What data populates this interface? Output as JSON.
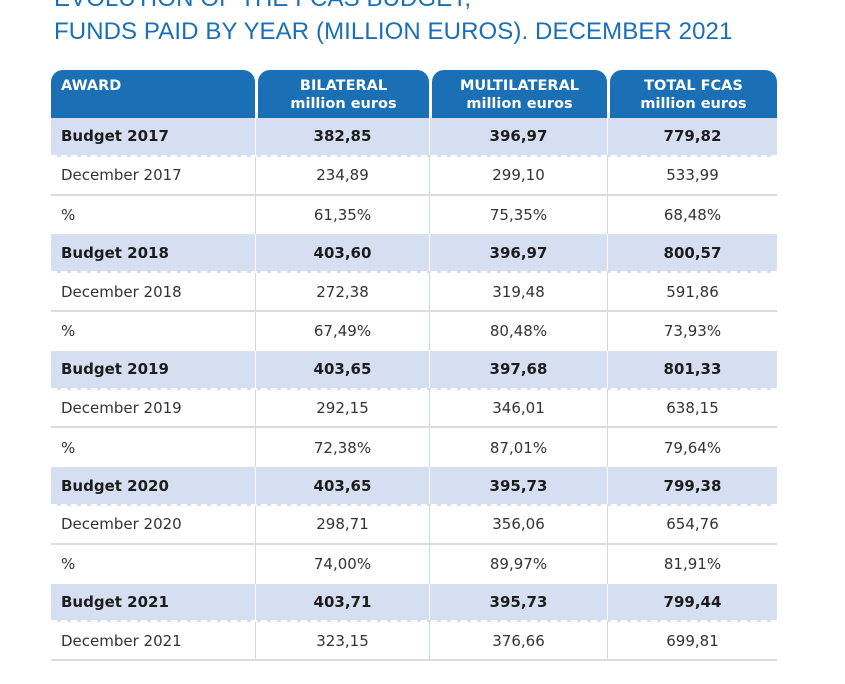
{
  "title": {
    "line1": "EVOLUTION OF THE FCAS BUDGET,",
    "line2": "FUNDS PAID BY YEAR (MILLION EUROS). DECEMBER 2021"
  },
  "header": {
    "award": "AWARD",
    "bilateral": [
      "BILATERAL",
      "million euros"
    ],
    "multilateral": [
      "MULTILATERAL",
      "million euros"
    ],
    "total": [
      "TOTAL FCAS",
      "million euros"
    ]
  },
  "rows": [
    {
      "type": "budget",
      "label": "Budget 2017",
      "bilateral": "382,85",
      "multilateral": "396,97",
      "total": "779,82"
    },
    {
      "type": "dec",
      "label": "December 2017",
      "bilateral": "234,89",
      "multilateral": "299,10",
      "total": "533,99"
    },
    {
      "type": "pct",
      "label": "%",
      "bilateral": "61,35%",
      "multilateral": "75,35%",
      "total": "68,48%"
    },
    {
      "type": "budget",
      "label": "Budget 2018",
      "bilateral": "403,60",
      "multilateral": "396,97",
      "total": "800,57"
    },
    {
      "type": "dec",
      "label": "December 2018",
      "bilateral": "272,38",
      "multilateral": "319,48",
      "total": "591,86"
    },
    {
      "type": "pct",
      "label": "%",
      "bilateral": "67,49%",
      "multilateral": "80,48%",
      "total": "73,93%"
    },
    {
      "type": "budget",
      "label": "Budget 2019",
      "bilateral": "403,65",
      "multilateral": "397,68",
      "total": "801,33"
    },
    {
      "type": "dec",
      "label": "December 2019",
      "bilateral": "292,15",
      "multilateral": "346,01",
      "total": "638,15"
    },
    {
      "type": "pct",
      "label": "%",
      "bilateral": "72,38%",
      "multilateral": "87,01%",
      "total": "79,64%"
    },
    {
      "type": "budget",
      "label": "Budget 2020",
      "bilateral": "403,65",
      "multilateral": "395,73",
      "total": "799,38"
    },
    {
      "type": "dec",
      "label": "December 2020",
      "bilateral": "298,71",
      "multilateral": "356,06",
      "total": "654,76"
    },
    {
      "type": "pct",
      "label": "%",
      "bilateral": "74,00%",
      "multilateral": "89,97%",
      "total": "81,91%"
    },
    {
      "type": "budget",
      "label": "Budget 2021",
      "bilateral": "403,71",
      "multilateral": "395,73",
      "total": "799,44"
    },
    {
      "type": "dec",
      "label": "December 2021",
      "bilateral": "323,15",
      "multilateral": "376,66",
      "total": "699,81"
    }
  ]
}
